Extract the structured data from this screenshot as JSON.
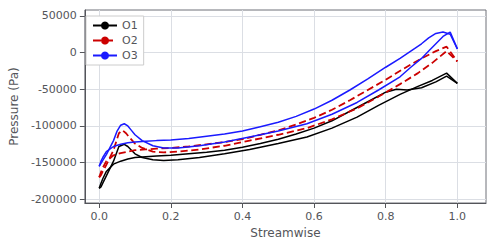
{
  "chart_data": {
    "type": "line",
    "xlabel": "Streamwise",
    "ylabel": "Pressure (Pa)",
    "xlim": [
      -0.04,
      1.08
    ],
    "ylim": [
      -205000,
      58000
    ],
    "xticks": [
      {
        "value": 0.0,
        "label": "0.0"
      },
      0.2,
      0.4,
      0.6,
      0.8,
      {
        "value": 1.0,
        "label": "1.0"
      }
    ],
    "yticks": [
      -200000,
      -150000,
      -100000,
      -50000,
      0,
      50000
    ],
    "grid": true,
    "legend": "upper left",
    "series": [
      {
        "name": "O1",
        "color": "black",
        "line_style": "solid",
        "x": [
          0.0,
          0.005,
          0.01,
          0.02,
          0.04,
          0.06,
          0.08,
          0.1,
          0.13,
          0.16,
          0.2,
          0.25,
          0.3,
          0.35,
          0.4,
          0.45,
          0.5,
          0.55,
          0.6,
          0.65,
          0.7,
          0.75,
          0.8,
          0.83,
          0.86,
          0.9,
          0.94,
          0.97,
          1.0
        ],
        "values": [
          -185000,
          -178000,
          -172000,
          -162000,
          -152000,
          -148000,
          -145000,
          -143000,
          -142000,
          -141000,
          -140000,
          -138000,
          -136000,
          -133000,
          -129000,
          -124000,
          -118000,
          -111000,
          -103000,
          -93000,
          -80000,
          -67000,
          -54000,
          -50000,
          -51000,
          -48000,
          -40000,
          -32000,
          -42000
        ]
      },
      {
        "name": "O1",
        "color": "black",
        "line_style": "solid",
        "x": [
          0.0,
          0.005,
          0.01,
          0.02,
          0.04,
          0.055,
          0.07,
          0.08,
          0.09,
          0.1,
          0.12,
          0.15,
          0.18,
          0.22,
          0.28,
          0.35,
          0.42,
          0.5,
          0.58,
          0.65,
          0.72,
          0.78,
          0.84,
          0.89,
          0.93,
          0.97,
          1.0
        ],
        "values": [
          -185000,
          -183000,
          -178000,
          -168000,
          -148000,
          -128000,
          -125000,
          -128000,
          -133000,
          -138000,
          -143000,
          -146000,
          -147000,
          -146000,
          -143000,
          -138000,
          -132000,
          -124000,
          -115000,
          -103000,
          -88000,
          -72000,
          -57000,
          -46000,
          -38000,
          -28000,
          -42000
        ]
      },
      {
        "name": "O2",
        "color": "#cc0000",
        "line_style": "dashed",
        "x": [
          0.0,
          0.005,
          0.01,
          0.02,
          0.04,
          0.06,
          0.08,
          0.1,
          0.13,
          0.16,
          0.2,
          0.25,
          0.3,
          0.35,
          0.4,
          0.45,
          0.5,
          0.55,
          0.6,
          0.65,
          0.7,
          0.75,
          0.8,
          0.85,
          0.9,
          0.94,
          0.97,
          1.0
        ],
        "values": [
          -170000,
          -163000,
          -157000,
          -148000,
          -140000,
          -137000,
          -135000,
          -133000,
          -132000,
          -131000,
          -130000,
          -128000,
          -125000,
          -122000,
          -118000,
          -112000,
          -106000,
          -98000,
          -89000,
          -78000,
          -65000,
          -51000,
          -37000,
          -22000,
          -8000,
          2000,
          8000,
          -12000
        ]
      },
      {
        "name": "O2",
        "color": "#cc0000",
        "line_style": "dashed",
        "x": [
          0.0,
          0.005,
          0.01,
          0.02,
          0.04,
          0.055,
          0.065,
          0.075,
          0.085,
          0.1,
          0.12,
          0.15,
          0.18,
          0.22,
          0.28,
          0.35,
          0.42,
          0.5,
          0.58,
          0.65,
          0.72,
          0.78,
          0.84,
          0.89,
          0.93,
          0.97,
          1.0
        ],
        "values": [
          -170000,
          -167000,
          -162000,
          -153000,
          -133000,
          -110000,
          -106000,
          -110000,
          -116000,
          -124000,
          -130000,
          -135000,
          -136000,
          -135000,
          -132000,
          -127000,
          -120000,
          -112000,
          -103000,
          -91000,
          -76000,
          -60000,
          -43000,
          -28000,
          -14000,
          2000,
          -12000
        ]
      },
      {
        "name": "O3",
        "color": "#1a1aff",
        "line_style": "solid",
        "x": [
          0.0,
          0.005,
          0.01,
          0.02,
          0.04,
          0.06,
          0.08,
          0.1,
          0.13,
          0.16,
          0.2,
          0.25,
          0.3,
          0.35,
          0.4,
          0.45,
          0.5,
          0.55,
          0.6,
          0.65,
          0.7,
          0.75,
          0.8,
          0.84,
          0.87,
          0.9,
          0.92,
          0.94,
          0.96,
          0.98,
          1.0
        ],
        "values": [
          -155000,
          -148000,
          -143000,
          -135000,
          -128000,
          -125000,
          -123000,
          -122000,
          -121000,
          -120000,
          -119000,
          -117000,
          -114000,
          -111000,
          -107000,
          -101000,
          -95000,
          -87000,
          -77000,
          -65000,
          -51000,
          -36000,
          -20000,
          -8000,
          2000,
          12000,
          20000,
          26000,
          28000,
          25000,
          5000
        ]
      },
      {
        "name": "O3",
        "color": "#1a1aff",
        "line_style": "solid",
        "x": [
          0.0,
          0.005,
          0.01,
          0.02,
          0.04,
          0.05,
          0.06,
          0.07,
          0.08,
          0.09,
          0.1,
          0.12,
          0.15,
          0.18,
          0.22,
          0.28,
          0.35,
          0.42,
          0.5,
          0.58,
          0.65,
          0.72,
          0.78,
          0.84,
          0.87,
          0.9,
          0.92,
          0.94,
          0.96,
          0.98,
          1.0
        ],
        "values": [
          -155000,
          -151000,
          -147000,
          -139000,
          -120000,
          -107000,
          -99000,
          -97000,
          -100000,
          -106000,
          -112000,
          -120000,
          -127000,
          -130000,
          -130000,
          -127000,
          -122000,
          -115000,
          -107000,
          -97000,
          -84000,
          -68000,
          -51000,
          -33000,
          -20000,
          -8000,
          2000,
          12000,
          22000,
          28000,
          5000
        ]
      }
    ]
  }
}
